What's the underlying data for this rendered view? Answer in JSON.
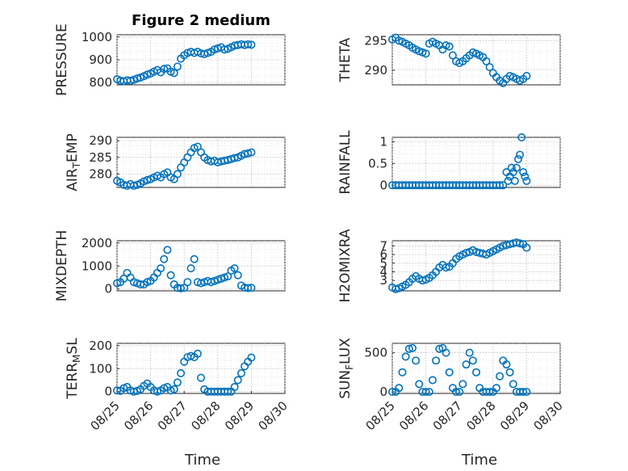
{
  "title": "Figure 2 medium",
  "x_axis_label": "Time",
  "marker_color": "#0072bd",
  "chart_data": [
    {
      "type": "scatter",
      "ylabel": "PRESSURE",
      "title": "Figure 2 medium",
      "yticks": [
        800,
        900,
        1000
      ],
      "ylim": [
        790,
        1010
      ],
      "xticks": [],
      "x": [
        0,
        0.1,
        0.2,
        0.3,
        0.4,
        0.5,
        0.6,
        0.7,
        0.8,
        0.9,
        1.0,
        1.1,
        1.2,
        1.3,
        1.4,
        1.5,
        1.6,
        1.7,
        1.8,
        1.9,
        2.0,
        2.1,
        2.2,
        2.3,
        2.4,
        2.5,
        2.6,
        2.7,
        2.8,
        2.9,
        3.0,
        3.1,
        3.2,
        3.3,
        3.4,
        3.5,
        3.6,
        3.7,
        3.8,
        3.9,
        4.0
      ],
      "y": [
        815,
        808,
        806,
        810,
        808,
        812,
        818,
        822,
        828,
        835,
        840,
        848,
        855,
        845,
        860,
        862,
        848,
        842,
        870,
        905,
        920,
        930,
        935,
        930,
        935,
        928,
        925,
        930,
        935,
        945,
        950,
        955,
        945,
        948,
        955,
        962,
        965,
        968,
        965,
        968,
        966
      ]
    },
    {
      "type": "scatter",
      "ylabel": "THETA",
      "yticks": [
        290,
        295
      ],
      "ylim": [
        287.5,
        296
      ],
      "xticks": [],
      "x": [
        0,
        0.1,
        0.2,
        0.3,
        0.4,
        0.5,
        0.6,
        0.7,
        0.8,
        0.9,
        1.0,
        1.1,
        1.2,
        1.3,
        1.4,
        1.5,
        1.6,
        1.7,
        1.8,
        1.9,
        2.0,
        2.1,
        2.2,
        2.3,
        2.4,
        2.5,
        2.6,
        2.7,
        2.8,
        2.9,
        3.0,
        3.1,
        3.2,
        3.3,
        3.4,
        3.5,
        3.6,
        3.7,
        3.8,
        3.9,
        4.0
      ],
      "y": [
        295.2,
        295.5,
        295.0,
        294.8,
        294.5,
        294.2,
        293.8,
        293.5,
        293.2,
        293.0,
        292.8,
        294.5,
        294.8,
        294.5,
        294.2,
        293.5,
        294.2,
        294.0,
        292.5,
        291.5,
        291.2,
        291.5,
        292.0,
        292.5,
        293.0,
        292.8,
        292.5,
        292.2,
        291.5,
        290.5,
        289.5,
        288.8,
        288.2,
        287.8,
        288.5,
        289.0,
        288.8,
        288.5,
        288.2,
        288.5,
        289.0
      ]
    },
    {
      "type": "scatter",
      "ylabel": "AIR_TEMP",
      "ylabel_main": "AIR",
      "ylabel_sub": "T",
      "ylabel_tail": "EMP",
      "yticks": [
        280,
        285,
        290
      ],
      "ylim": [
        276,
        291
      ],
      "xticks": [],
      "x": [
        0,
        0.1,
        0.2,
        0.3,
        0.4,
        0.5,
        0.6,
        0.7,
        0.8,
        0.9,
        1.0,
        1.1,
        1.2,
        1.3,
        1.4,
        1.5,
        1.6,
        1.7,
        1.8,
        1.9,
        2.0,
        2.1,
        2.2,
        2.3,
        2.4,
        2.5,
        2.6,
        2.7,
        2.8,
        2.9,
        3.0,
        3.1,
        3.2,
        3.3,
        3.4,
        3.5,
        3.6,
        3.7,
        3.8,
        3.9,
        4.0
      ],
      "y": [
        278.0,
        277.5,
        276.8,
        276.5,
        277.0,
        276.5,
        276.8,
        277.2,
        277.8,
        278.2,
        278.5,
        279.0,
        279.5,
        279.0,
        280.0,
        280.5,
        279.0,
        278.5,
        280.0,
        282.0,
        283.5,
        285.0,
        286.5,
        287.8,
        288.2,
        286.5,
        285.0,
        284.2,
        283.8,
        284.0,
        283.5,
        283.8,
        284.0,
        284.2,
        284.5,
        284.8,
        285.0,
        285.5,
        286.0,
        286.2,
        286.5
      ]
    },
    {
      "type": "scatter",
      "ylabel": "RAINFALL",
      "yticks": [
        0,
        0.5,
        1
      ],
      "ylim": [
        -0.05,
        1.1
      ],
      "xticks": [],
      "x": [
        0,
        0.1,
        0.2,
        0.3,
        0.4,
        0.5,
        0.6,
        0.7,
        0.8,
        0.9,
        1.0,
        1.1,
        1.2,
        1.3,
        1.4,
        1.5,
        1.6,
        1.7,
        1.8,
        1.9,
        2.0,
        2.1,
        2.2,
        2.3,
        2.4,
        2.5,
        2.6,
        2.7,
        2.8,
        2.9,
        3.0,
        3.1,
        3.2,
        3.3,
        3.4,
        3.45,
        3.5,
        3.55,
        3.6,
        3.65,
        3.7,
        3.75,
        3.8,
        3.85,
        3.9,
        3.95,
        4.0
      ],
      "y": [
        0,
        0,
        0,
        0,
        0,
        0,
        0,
        0,
        0,
        0,
        0,
        0,
        0,
        0,
        0,
        0,
        0,
        0,
        0,
        0,
        0,
        0,
        0,
        0,
        0,
        0,
        0,
        0,
        0,
        0,
        0,
        0,
        0,
        0,
        0.3,
        0.1,
        0.2,
        0.4,
        0.3,
        0.1,
        0.4,
        0.6,
        0.7,
        1.1,
        0.3,
        0.2,
        0.1
      ]
    },
    {
      "type": "scatter",
      "ylabel": "MIXDEPTH",
      "yticks": [
        0,
        1000,
        2000
      ],
      "ylim": [
        -80,
        2100
      ],
      "xticks": [],
      "x": [
        0,
        0.1,
        0.2,
        0.3,
        0.4,
        0.5,
        0.6,
        0.7,
        0.8,
        0.9,
        1.0,
        1.1,
        1.2,
        1.3,
        1.4,
        1.5,
        1.6,
        1.7,
        1.8,
        1.9,
        2.0,
        2.1,
        2.2,
        2.3,
        2.4,
        2.5,
        2.6,
        2.7,
        2.8,
        2.9,
        3.0,
        3.1,
        3.2,
        3.3,
        3.4,
        3.5,
        3.6,
        3.7,
        3.8,
        3.9,
        4.0
      ],
      "y": [
        250,
        300,
        450,
        700,
        500,
        300,
        250,
        200,
        200,
        300,
        350,
        500,
        700,
        900,
        1300,
        1700,
        600,
        200,
        50,
        30,
        50,
        300,
        900,
        1300,
        300,
        250,
        300,
        350,
        300,
        350,
        400,
        450,
        500,
        550,
        800,
        900,
        600,
        150,
        60,
        40,
        50
      ]
    },
    {
      "type": "scatter",
      "ylabel": "H2OMIXRA",
      "yticks": [
        3,
        4,
        5,
        6,
        7
      ],
      "ylim": [
        1.8,
        7.6
      ],
      "xticks": [],
      "x": [
        0,
        0.1,
        0.2,
        0.3,
        0.4,
        0.5,
        0.6,
        0.7,
        0.8,
        0.9,
        1.0,
        1.1,
        1.2,
        1.3,
        1.4,
        1.5,
        1.6,
        1.7,
        1.8,
        1.9,
        2.0,
        2.1,
        2.2,
        2.3,
        2.4,
        2.5,
        2.6,
        2.7,
        2.8,
        2.9,
        3.0,
        3.1,
        3.2,
        3.3,
        3.4,
        3.5,
        3.6,
        3.7,
        3.8,
        3.9,
        4.0
      ],
      "y": [
        2.2,
        2.0,
        2.1,
        2.3,
        2.5,
        2.8,
        3.2,
        3.5,
        3.2,
        3.0,
        3.1,
        3.3,
        3.6,
        4.0,
        4.5,
        4.8,
        4.5,
        4.6,
        5.0,
        5.5,
        5.8,
        6.0,
        6.2,
        6.3,
        6.5,
        6.3,
        6.2,
        6.1,
        6.0,
        6.2,
        6.4,
        6.6,
        6.8,
        7.0,
        7.1,
        7.2,
        7.3,
        7.4,
        7.3,
        7.2,
        6.8
      ]
    },
    {
      "type": "scatter",
      "ylabel": "TERR_MSL",
      "ylabel_main": "TERR",
      "ylabel_sub": "M",
      "ylabel_tail": "SL",
      "yticks": [
        0,
        100,
        200
      ],
      "ylim": [
        -8,
        210
      ],
      "xticks": [
        "08/25",
        "08/26",
        "08/27",
        "08/28",
        "08/29",
        "08/30"
      ],
      "x": [
        0,
        0.1,
        0.2,
        0.3,
        0.4,
        0.5,
        0.6,
        0.7,
        0.8,
        0.9,
        1.0,
        1.1,
        1.2,
        1.3,
        1.4,
        1.5,
        1.6,
        1.7,
        1.8,
        1.9,
        2.0,
        2.1,
        2.2,
        2.3,
        2.4,
        2.5,
        2.6,
        2.7,
        2.8,
        2.9,
        3.0,
        3.1,
        3.2,
        3.3,
        3.4,
        3.5,
        3.6,
        3.7,
        3.8,
        3.9,
        4.0
      ],
      "y": [
        5,
        3,
        15,
        20,
        5,
        0,
        3,
        10,
        25,
        35,
        20,
        5,
        0,
        5,
        15,
        20,
        5,
        10,
        40,
        80,
        130,
        150,
        155,
        150,
        165,
        60,
        10,
        0,
        0,
        0,
        0,
        0,
        0,
        0,
        0,
        20,
        50,
        80,
        110,
        130,
        148
      ]
    },
    {
      "type": "scatter",
      "ylabel": "SUN_FLUX",
      "ylabel_main": "SUN",
      "ylabel_sub": "F",
      "ylabel_tail": "LUX",
      "yticks": [
        0,
        500
      ],
      "ylim": [
        -20,
        620
      ],
      "xticks": [
        "08/25",
        "08/26",
        "08/27",
        "08/28",
        "08/29",
        "08/30"
      ],
      "x": [
        0,
        0.1,
        0.2,
        0.3,
        0.4,
        0.5,
        0.6,
        0.7,
        0.8,
        0.9,
        1.0,
        1.1,
        1.2,
        1.3,
        1.4,
        1.5,
        1.6,
        1.7,
        1.8,
        1.9,
        2.0,
        2.1,
        2.2,
        2.3,
        2.4,
        2.5,
        2.6,
        2.7,
        2.8,
        2.9,
        3.0,
        3.1,
        3.2,
        3.3,
        3.4,
        3.5,
        3.6,
        3.7,
        3.8,
        3.9,
        4.0
      ],
      "y": [
        0,
        0,
        50,
        250,
        450,
        550,
        560,
        400,
        100,
        0,
        0,
        0,
        150,
        400,
        550,
        560,
        500,
        250,
        50,
        0,
        0,
        100,
        350,
        500,
        400,
        250,
        50,
        0,
        0,
        0,
        0,
        50,
        200,
        400,
        350,
        250,
        100,
        0,
        0,
        0,
        0
      ]
    }
  ]
}
